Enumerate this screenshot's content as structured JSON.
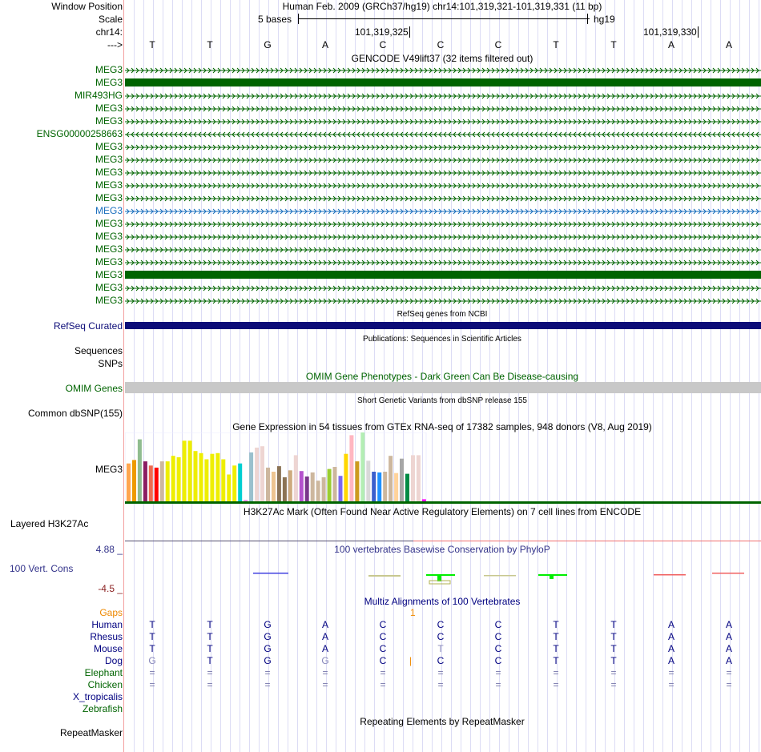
{
  "header": {
    "position_label": "Window Position",
    "position_text": "Human Feb. 2009 (GRCh37/hg19)   chr14:101,319,321-101,319,331 (11 bp)",
    "scale_label": "Scale",
    "scale_text": "5 bases",
    "scale_db": "hg19",
    "chrom_label": "chr14:",
    "tick1": "101,319,325",
    "tick2": "101,319,330",
    "strand_label": "--->",
    "bases": [
      "T",
      "T",
      "G",
      "A",
      "C",
      "C",
      "C",
      "T",
      "T",
      "A",
      "A"
    ]
  },
  "gencode": {
    "title": "GENCODE V49lift37 (32 items filtered out)",
    "rows": [
      {
        "name": "MEG3",
        "style": "arrow-right",
        "color": "#006400"
      },
      {
        "name": "MEG3",
        "style": "solid",
        "color": "#006400"
      },
      {
        "name": "MIR493HG",
        "style": "arrow-right",
        "color": "#006400"
      },
      {
        "name": "MEG3",
        "style": "arrow-right",
        "color": "#006400"
      },
      {
        "name": "MEG3",
        "style": "arrow-right",
        "color": "#006400"
      },
      {
        "name": "ENSG00000258663",
        "style": "arrow-left",
        "color": "#006400"
      },
      {
        "name": "MEG3",
        "style": "arrow-right",
        "color": "#006400"
      },
      {
        "name": "MEG3",
        "style": "arrow-right",
        "color": "#006400"
      },
      {
        "name": "MEG3",
        "style": "arrow-right",
        "color": "#006400"
      },
      {
        "name": "MEG3",
        "style": "arrow-right",
        "color": "#006400"
      },
      {
        "name": "MEG3",
        "style": "arrow-right",
        "color": "#006400"
      },
      {
        "name": "MEG3",
        "style": "arrow-right",
        "color": "#1a6fbd"
      },
      {
        "name": "MEG3",
        "style": "arrow-right",
        "color": "#006400"
      },
      {
        "name": "MEG3",
        "style": "arrow-right",
        "color": "#006400"
      },
      {
        "name": "MEG3",
        "style": "arrow-right",
        "color": "#006400"
      },
      {
        "name": "MEG3",
        "style": "arrow-right",
        "color": "#006400"
      },
      {
        "name": "MEG3",
        "style": "solid",
        "color": "#006400"
      },
      {
        "name": "MEG3",
        "style": "arrow-right",
        "color": "#006400"
      },
      {
        "name": "MEG3",
        "style": "arrow-right",
        "color": "#006400"
      }
    ]
  },
  "refseq": {
    "title": "RefSeq genes from NCBI",
    "label": "RefSeq Curated",
    "color": "#0c0c78"
  },
  "pubs": {
    "title": "Publications: Sequences in Scientific Articles",
    "label1": "Sequences",
    "label2": "SNPs"
  },
  "omim": {
    "title": "OMIM Gene Phenotypes - Dark Green Can Be Disease-causing",
    "label": "OMIM Genes"
  },
  "dbsnp": {
    "title": "Short Genetic Variants from dbSNP release 155",
    "label": "Common dbSNP(155)"
  },
  "gtex": {
    "title": "Gene Expression in 54 tissues from GTEx RNA-seq of 17382 samples, 948 donors (V8, Aug 2019)",
    "label": "MEG3"
  },
  "chart_data": {
    "type": "bar",
    "title": "Gene Expression in 54 tissues from GTEx RNA-seq",
    "ylim": [
      0,
      100
    ],
    "values": [
      55,
      60,
      90,
      58,
      52,
      49,
      58,
      58,
      66,
      64,
      88,
      88,
      73,
      70,
      61,
      69,
      70,
      61,
      39,
      52,
      55,
      2,
      71,
      78,
      80,
      49,
      43,
      51,
      35,
      45,
      67,
      44,
      36,
      42,
      30,
      35,
      47,
      50,
      37,
      69,
      96,
      58,
      100,
      59,
      43,
      42,
      43,
      66,
      41,
      62,
      40,
      67,
      67,
      3
    ],
    "colors": [
      "#FFA54F",
      "#EE9A00",
      "#8FBC8F",
      "#8B1C62",
      "#EE6A50",
      "#FF0000",
      "#CDB79E",
      "#EEEE00",
      "#EEEE00",
      "#EEEE00",
      "#EEEE00",
      "#EEEE00",
      "#EEEE00",
      "#EEEE00",
      "#EEEE00",
      "#EEEE00",
      "#EEEE00",
      "#EEEE00",
      "#EEEE00",
      "#EEEE00",
      "#00CED1",
      "#EE82EE",
      "#9AC0CD",
      "#EED5D2",
      "#EED5D2",
      "#CDB79E",
      "#EEC591",
      "#8B7355",
      "#8B7355",
      "#CDAA7D",
      "#EED5D2",
      "#B452CD",
      "#7A378B",
      "#CDB79E",
      "#CDB79E",
      "#CDB79E",
      "#9ACD32",
      "#CDB79E",
      "#7B68EE",
      "#FFD700",
      "#FFB6C1",
      "#CD9B1D",
      "#B4EEB4",
      "#D9D9D9",
      "#3A5FCD",
      "#1E90FF",
      "#CDB79E",
      "#CDB79E",
      "#FFD39B",
      "#A6A6A6",
      "#008B45",
      "#EED5D2",
      "#EED5D2",
      "#FF00FF"
    ]
  },
  "h3k27ac": {
    "title": "H3K27Ac Mark (Often Found Near Active Regulatory Elements) on 7 cell lines from ENCODE",
    "label": "Layered H3K27Ac"
  },
  "phylop": {
    "title": "100 vertebrates Basewise Conservation by PhyloP",
    "label": "100 Vert. Cons",
    "max": "4.88 _",
    "min": "-4.5 _"
  },
  "multiz": {
    "title": "Multiz Alignments of 100 Vertebrates",
    "gaps_label": "Gaps",
    "gap_mark": "1",
    "species": [
      {
        "name": "Human",
        "seq": [
          "T",
          "T",
          "G",
          "A",
          "C",
          "C",
          "C",
          "T",
          "T",
          "A",
          "A"
        ],
        "color": "#000080"
      },
      {
        "name": "Rhesus",
        "seq": [
          "T",
          "T",
          "G",
          "A",
          "C",
          "C",
          "C",
          "T",
          "T",
          "A",
          "A"
        ],
        "color": "#000080"
      },
      {
        "name": "Mouse",
        "seq": [
          "T",
          "T",
          "G",
          "A",
          "C",
          "T",
          "C",
          "T",
          "T",
          "A",
          "A"
        ],
        "color": "#000080"
      },
      {
        "name": "Dog",
        "seq": [
          "G",
          "T",
          "G",
          "G",
          "C",
          "C",
          "C",
          "T",
          "T",
          "A",
          "A"
        ],
        "color": "#000080"
      },
      {
        "name": "Elephant",
        "seq": [
          "=",
          "=",
          "=",
          "=",
          "=",
          "=",
          "=",
          "=",
          "=",
          "=",
          "="
        ],
        "color": "#006400"
      },
      {
        "name": "Chicken",
        "seq": [
          "=",
          "=",
          "=",
          "=",
          "=",
          "=",
          "=",
          "=",
          "=",
          "=",
          "="
        ],
        "color": "#006400"
      },
      {
        "name": "X_tropicalis",
        "seq": [],
        "color": "#000080"
      },
      {
        "name": "Zebrafish",
        "seq": [],
        "color": "#006400"
      }
    ]
  },
  "repeatmasker": {
    "title": "Repeating Elements by RepeatMasker",
    "label": "RepeatMasker"
  }
}
